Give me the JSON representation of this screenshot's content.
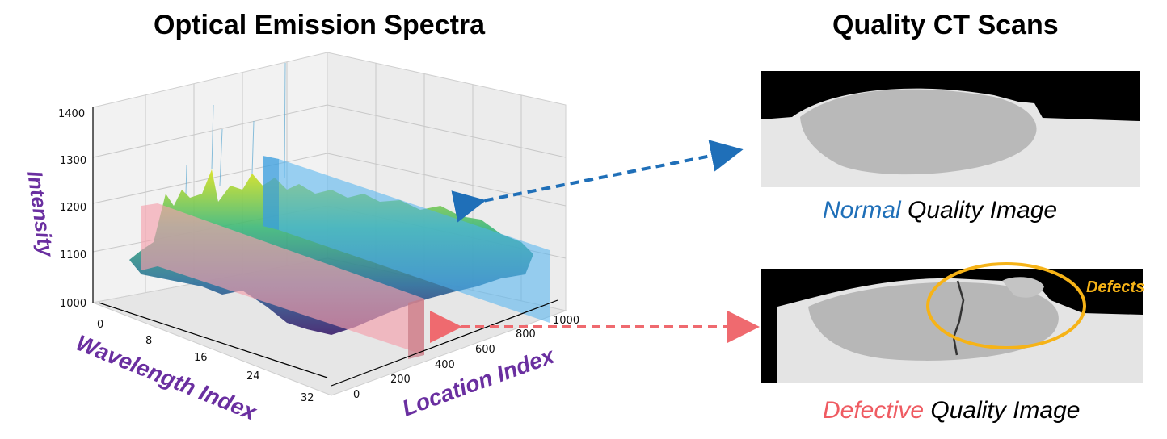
{
  "titles": {
    "left": "Optical Emission Spectra",
    "right": "Quality CT Scans"
  },
  "plot": {
    "z_label": "Intensity",
    "x_label": "Wavelength Index",
    "y_label": "Location Index",
    "z_ticks": [
      "1000",
      "1100",
      "1200",
      "1300",
      "1400"
    ],
    "x_ticks": [
      "0",
      "8",
      "16",
      "24",
      "32"
    ],
    "y_ticks": [
      "0",
      "200",
      "400",
      "600",
      "800",
      "1000"
    ]
  },
  "captions": {
    "normal_keyword": "Normal",
    "normal_rest": " Quality Image",
    "defective_keyword": "Defective",
    "defective_rest": " Quality Image"
  },
  "annotation": {
    "defects": "Defects"
  },
  "colors": {
    "normal": "#1f6fb8",
    "defective": "#ef5b62",
    "axis_label": "#6a2fa0",
    "defect_ring": "#f6b317",
    "normal_highlight": "#4fb3f0",
    "defective_highlight": "#f5a0ac"
  }
}
